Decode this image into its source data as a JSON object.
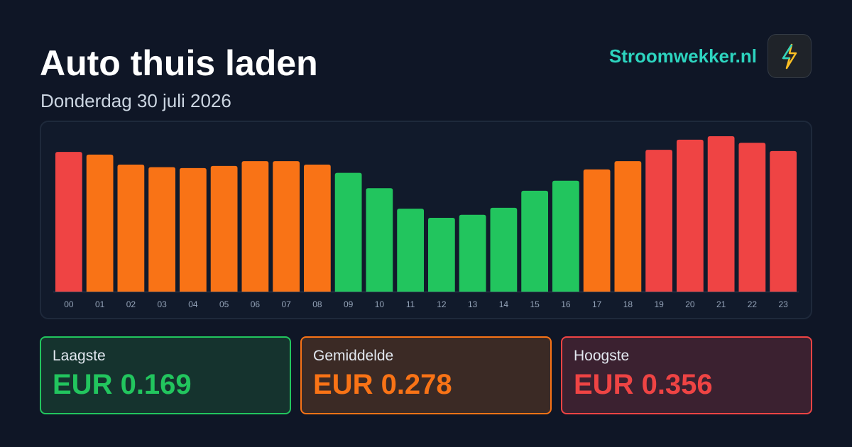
{
  "header": {
    "title": "Auto thuis laden",
    "subtitle": "Donderdag 30 juli 2026",
    "brand": "Stroomwekker.nl"
  },
  "chart_data": {
    "type": "bar",
    "categories": [
      "00",
      "01",
      "02",
      "03",
      "04",
      "05",
      "06",
      "07",
      "08",
      "09",
      "10",
      "11",
      "12",
      "13",
      "14",
      "15",
      "16",
      "17",
      "18",
      "19",
      "20",
      "21",
      "22",
      "23"
    ],
    "values": [
      0.32,
      0.314,
      0.291,
      0.285,
      0.283,
      0.288,
      0.299,
      0.299,
      0.291,
      0.272,
      0.237,
      0.19,
      0.169,
      0.176,
      0.192,
      0.231,
      0.254,
      0.28,
      0.299,
      0.325,
      0.348,
      0.356,
      0.341,
      0.322
    ],
    "colors": [
      "#ef4444",
      "#f97316",
      "#f97316",
      "#f97316",
      "#f97316",
      "#f97316",
      "#f97316",
      "#f97316",
      "#f97316",
      "#22c55e",
      "#22c55e",
      "#22c55e",
      "#22c55e",
      "#22c55e",
      "#22c55e",
      "#22c55e",
      "#22c55e",
      "#f97316",
      "#f97316",
      "#ef4444",
      "#ef4444",
      "#ef4444",
      "#ef4444",
      "#ef4444"
    ]
  },
  "stats": [
    {
      "label": "Laagste",
      "value": "EUR 0.169"
    },
    {
      "label": "Gemiddelde",
      "value": "EUR 0.278"
    },
    {
      "label": "Hoogste",
      "value": "EUR 0.356"
    }
  ]
}
